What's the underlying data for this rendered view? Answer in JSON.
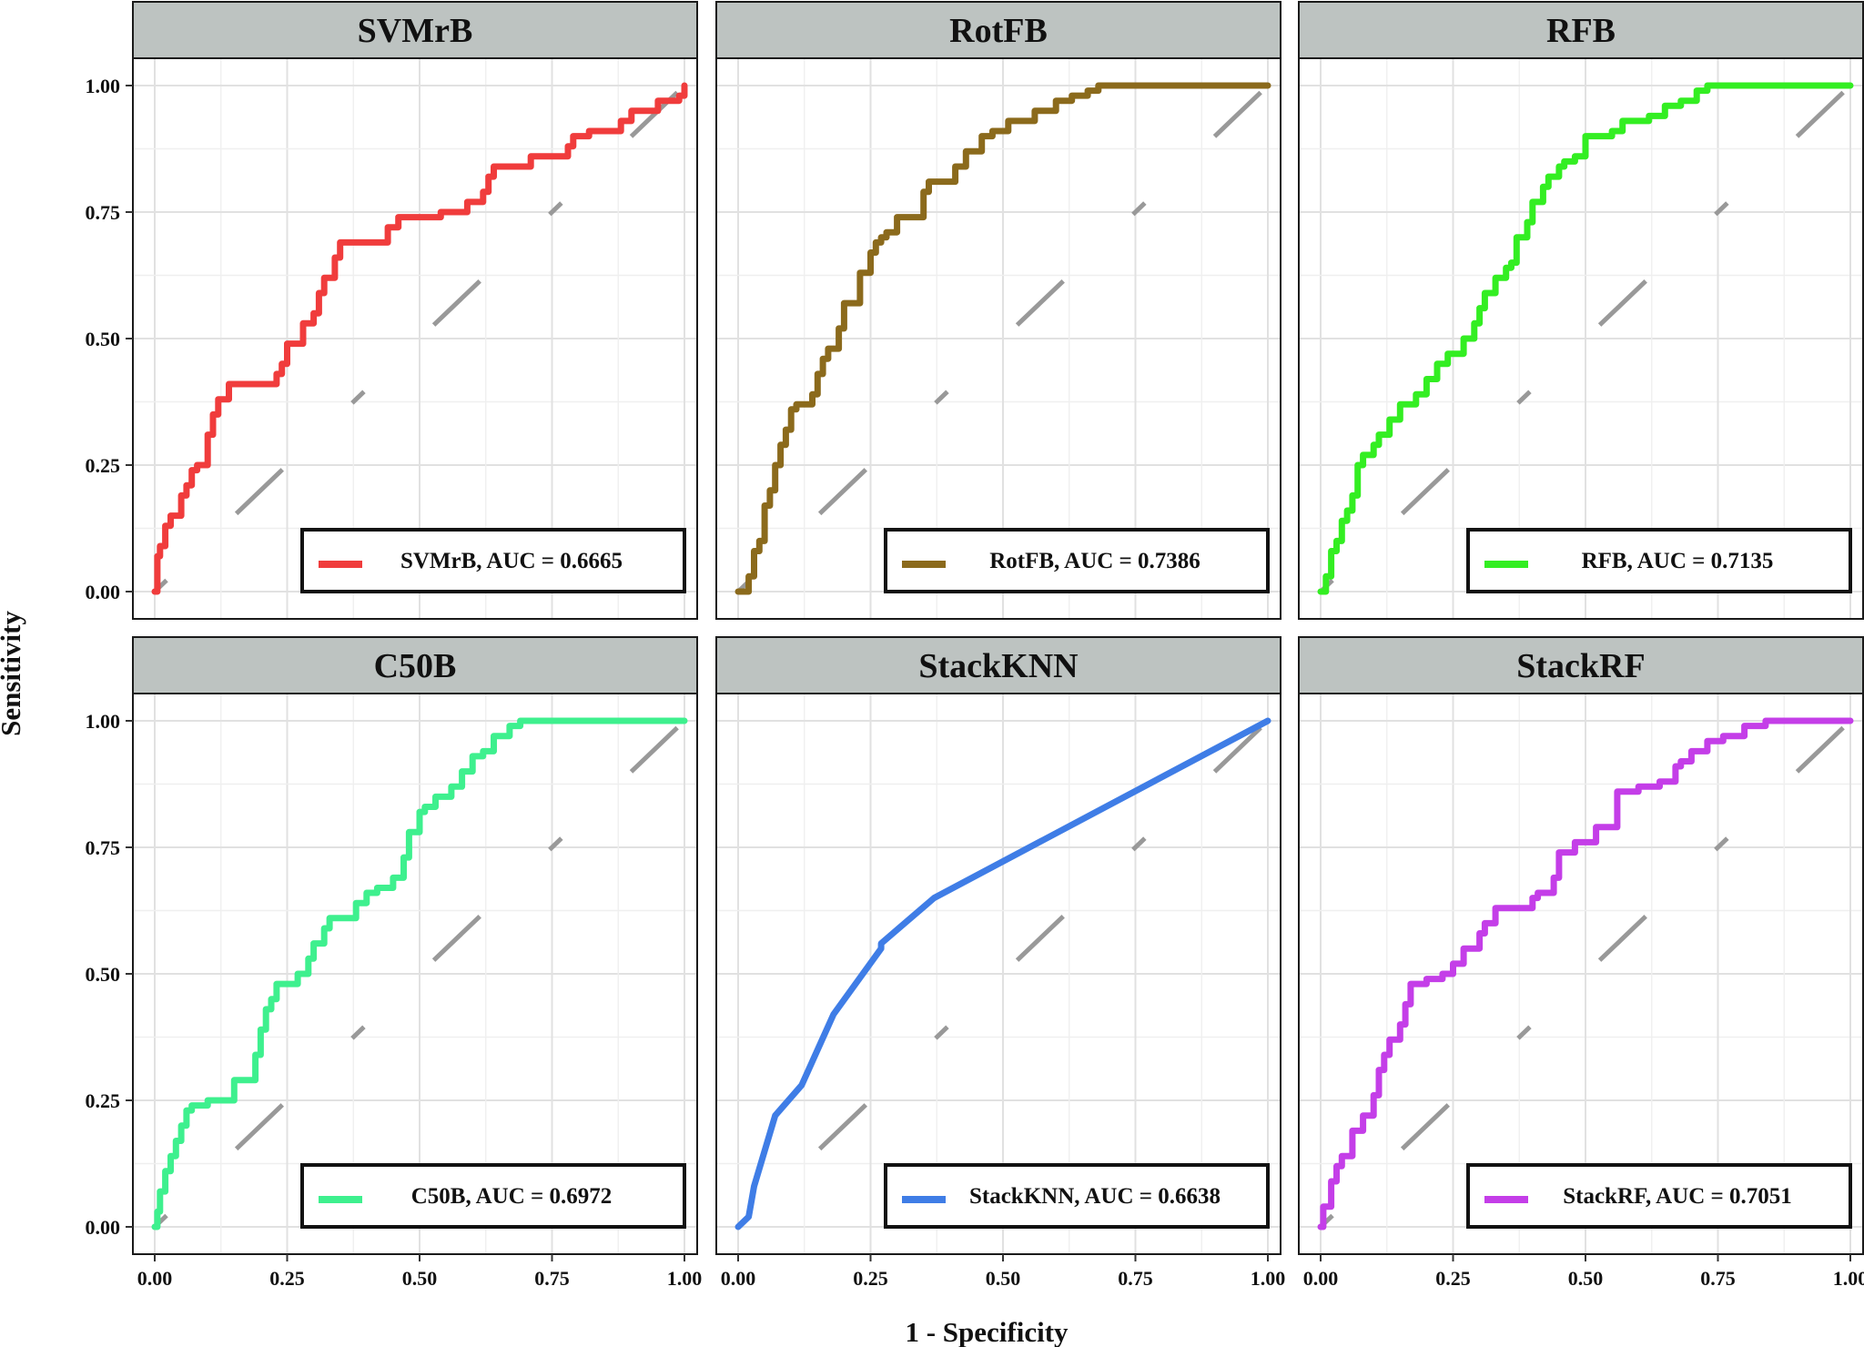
{
  "chart_data": {
    "type": "line",
    "xlabel": "1 - Specificity",
    "ylabel": "Sensitivity",
    "xlim": [
      0,
      1
    ],
    "ylim": [
      0,
      1
    ],
    "x_ticks": [
      "0.00",
      "0.25",
      "0.50",
      "0.75",
      "1.00"
    ],
    "y_ticks": [
      "0.00",
      "0.25",
      "0.50",
      "0.75",
      "1.00"
    ],
    "grid": true,
    "reference_line": "dashed diagonal y = x",
    "reference_color": "#999999",
    "panels": [
      {
        "title": "SVMrB",
        "legend": "SVMrB, AUC = 0.6665",
        "auc": 0.6665,
        "color": "#f03c3c",
        "x": [
          0,
          0.005,
          0.005,
          0.01,
          0.01,
          0.02,
          0.02,
          0.03,
          0.03,
          0.05,
          0.05,
          0.06,
          0.06,
          0.07,
          0.07,
          0.08,
          0.08,
          0.1,
          0.1,
          0.11,
          0.11,
          0.12,
          0.12,
          0.14,
          0.14,
          0.23,
          0.23,
          0.24,
          0.24,
          0.25,
          0.25,
          0.28,
          0.28,
          0.3,
          0.3,
          0.31,
          0.31,
          0.32,
          0.32,
          0.34,
          0.34,
          0.35,
          0.35,
          0.37,
          0.37,
          0.44,
          0.44,
          0.46,
          0.46,
          0.54,
          0.54,
          0.59,
          0.59,
          0.62,
          0.62,
          0.63,
          0.63,
          0.64,
          0.64,
          0.71,
          0.71,
          0.78,
          0.78,
          0.79,
          0.79,
          0.82,
          0.82,
          0.88,
          0.88,
          0.9,
          0.9,
          0.95,
          0.95,
          0.99,
          0.99,
          1.0,
          1.0
        ],
        "y": [
          0,
          0,
          0.07,
          0.07,
          0.09,
          0.09,
          0.13,
          0.13,
          0.15,
          0.15,
          0.19,
          0.19,
          0.21,
          0.21,
          0.24,
          0.24,
          0.25,
          0.25,
          0.31,
          0.31,
          0.35,
          0.35,
          0.38,
          0.38,
          0.41,
          0.41,
          0.43,
          0.43,
          0.45,
          0.45,
          0.49,
          0.49,
          0.53,
          0.53,
          0.55,
          0.55,
          0.59,
          0.59,
          0.62,
          0.62,
          0.66,
          0.66,
          0.69,
          0.69,
          0.69,
          0.69,
          0.72,
          0.72,
          0.74,
          0.74,
          0.75,
          0.75,
          0.77,
          0.77,
          0.79,
          0.79,
          0.82,
          0.82,
          0.84,
          0.84,
          0.86,
          0.86,
          0.88,
          0.88,
          0.9,
          0.9,
          0.91,
          0.91,
          0.93,
          0.93,
          0.95,
          0.95,
          0.97,
          0.97,
          0.98,
          0.98,
          1.0
        ]
      },
      {
        "title": "RotFB",
        "legend": "RotFB, AUC = 0.7386",
        "auc": 0.7386,
        "color": "#8b6a1c",
        "x": [
          0,
          0.02,
          0.02,
          0.03,
          0.03,
          0.04,
          0.04,
          0.05,
          0.05,
          0.06,
          0.06,
          0.07,
          0.07,
          0.08,
          0.08,
          0.09,
          0.09,
          0.1,
          0.1,
          0.11,
          0.11,
          0.14,
          0.14,
          0.15,
          0.15,
          0.16,
          0.16,
          0.17,
          0.17,
          0.19,
          0.19,
          0.2,
          0.2,
          0.23,
          0.23,
          0.25,
          0.25,
          0.26,
          0.26,
          0.27,
          0.27,
          0.28,
          0.28,
          0.3,
          0.3,
          0.35,
          0.35,
          0.36,
          0.36,
          0.41,
          0.41,
          0.43,
          0.43,
          0.46,
          0.46,
          0.48,
          0.48,
          0.51,
          0.51,
          0.56,
          0.56,
          0.6,
          0.6,
          0.63,
          0.63,
          0.66,
          0.66,
          0.68,
          0.68,
          0.7,
          0.7,
          1.0
        ],
        "y": [
          0,
          0,
          0.03,
          0.03,
          0.08,
          0.08,
          0.1,
          0.1,
          0.17,
          0.17,
          0.2,
          0.2,
          0.25,
          0.25,
          0.29,
          0.29,
          0.32,
          0.32,
          0.36,
          0.36,
          0.37,
          0.37,
          0.39,
          0.39,
          0.43,
          0.43,
          0.46,
          0.46,
          0.48,
          0.48,
          0.52,
          0.52,
          0.57,
          0.57,
          0.63,
          0.63,
          0.67,
          0.67,
          0.69,
          0.69,
          0.7,
          0.7,
          0.71,
          0.71,
          0.74,
          0.74,
          0.79,
          0.79,
          0.81,
          0.81,
          0.84,
          0.84,
          0.87,
          0.87,
          0.9,
          0.9,
          0.91,
          0.91,
          0.93,
          0.93,
          0.95,
          0.95,
          0.97,
          0.97,
          0.98,
          0.98,
          0.99,
          0.99,
          1.0,
          1.0,
          1.0,
          1.0
        ]
      },
      {
        "title": "RFB",
        "legend": "RFB, AUC = 0.7135",
        "auc": 0.7135,
        "color": "#33ee22",
        "x": [
          0,
          0.01,
          0.01,
          0.02,
          0.02,
          0.03,
          0.03,
          0.04,
          0.04,
          0.05,
          0.05,
          0.06,
          0.06,
          0.07,
          0.07,
          0.08,
          0.08,
          0.1,
          0.1,
          0.11,
          0.11,
          0.13,
          0.13,
          0.15,
          0.15,
          0.18,
          0.18,
          0.2,
          0.2,
          0.22,
          0.22,
          0.24,
          0.24,
          0.27,
          0.27,
          0.29,
          0.29,
          0.3,
          0.3,
          0.31,
          0.31,
          0.33,
          0.33,
          0.35,
          0.35,
          0.36,
          0.36,
          0.37,
          0.37,
          0.39,
          0.39,
          0.4,
          0.4,
          0.42,
          0.42,
          0.43,
          0.43,
          0.45,
          0.45,
          0.46,
          0.46,
          0.47,
          0.47,
          0.48,
          0.48,
          0.5,
          0.5,
          0.55,
          0.55,
          0.57,
          0.57,
          0.62,
          0.62,
          0.65,
          0.65,
          0.68,
          0.68,
          0.71,
          0.71,
          0.73,
          0.73,
          0.77,
          0.77,
          1.0
        ],
        "y": [
          0,
          0,
          0.03,
          0.03,
          0.08,
          0.08,
          0.1,
          0.1,
          0.14,
          0.14,
          0.16,
          0.16,
          0.19,
          0.19,
          0.25,
          0.25,
          0.27,
          0.27,
          0.29,
          0.29,
          0.31,
          0.31,
          0.34,
          0.34,
          0.37,
          0.37,
          0.39,
          0.39,
          0.42,
          0.42,
          0.45,
          0.45,
          0.47,
          0.47,
          0.5,
          0.5,
          0.53,
          0.53,
          0.56,
          0.56,
          0.59,
          0.59,
          0.62,
          0.62,
          0.64,
          0.64,
          0.65,
          0.65,
          0.7,
          0.7,
          0.73,
          0.73,
          0.77,
          0.77,
          0.8,
          0.8,
          0.82,
          0.82,
          0.84,
          0.84,
          0.85,
          0.85,
          0.85,
          0.85,
          0.86,
          0.86,
          0.9,
          0.9,
          0.91,
          0.91,
          0.93,
          0.93,
          0.94,
          0.94,
          0.96,
          0.96,
          0.97,
          0.97,
          0.99,
          0.99,
          1.0,
          1.0,
          1.0,
          1.0
        ]
      },
      {
        "title": "C50B",
        "legend": "C50B,  AUC = 0.6972",
        "auc": 0.6972,
        "color": "#3ef08e",
        "x": [
          0,
          0.005,
          0.005,
          0.01,
          0.01,
          0.02,
          0.02,
          0.03,
          0.03,
          0.04,
          0.04,
          0.05,
          0.05,
          0.06,
          0.06,
          0.07,
          0.07,
          0.1,
          0.1,
          0.15,
          0.15,
          0.19,
          0.19,
          0.2,
          0.2,
          0.21,
          0.21,
          0.22,
          0.22,
          0.23,
          0.23,
          0.27,
          0.27,
          0.29,
          0.29,
          0.3,
          0.3,
          0.32,
          0.32,
          0.33,
          0.33,
          0.38,
          0.38,
          0.4,
          0.4,
          0.42,
          0.42,
          0.45,
          0.45,
          0.47,
          0.47,
          0.48,
          0.48,
          0.5,
          0.5,
          0.51,
          0.51,
          0.53,
          0.53,
          0.56,
          0.56,
          0.58,
          0.58,
          0.6,
          0.6,
          0.62,
          0.62,
          0.64,
          0.64,
          0.67,
          0.67,
          0.69,
          0.69,
          0.71,
          0.71,
          1.0
        ],
        "y": [
          0,
          0,
          0.03,
          0.03,
          0.07,
          0.07,
          0.11,
          0.11,
          0.14,
          0.14,
          0.17,
          0.17,
          0.2,
          0.2,
          0.23,
          0.23,
          0.24,
          0.24,
          0.25,
          0.25,
          0.29,
          0.29,
          0.34,
          0.34,
          0.39,
          0.39,
          0.43,
          0.43,
          0.45,
          0.45,
          0.48,
          0.48,
          0.5,
          0.5,
          0.53,
          0.53,
          0.56,
          0.56,
          0.59,
          0.59,
          0.61,
          0.61,
          0.64,
          0.64,
          0.66,
          0.66,
          0.67,
          0.67,
          0.69,
          0.69,
          0.73,
          0.73,
          0.78,
          0.78,
          0.82,
          0.82,
          0.83,
          0.83,
          0.85,
          0.85,
          0.87,
          0.87,
          0.9,
          0.9,
          0.93,
          0.93,
          0.94,
          0.94,
          0.97,
          0.97,
          0.99,
          0.99,
          1.0,
          1.0,
          1.0,
          1.0
        ]
      },
      {
        "title": "StackKNN",
        "legend": "StackKNN, AUC  = 0.6638",
        "auc": 0.6638,
        "color": "#3f7de6",
        "x": [
          0,
          0.02,
          0.03,
          0.07,
          0.12,
          0.18,
          0.27,
          0.27,
          0.37,
          1.0
        ],
        "y": [
          0,
          0.02,
          0.08,
          0.22,
          0.28,
          0.42,
          0.55,
          0.56,
          0.65,
          1.0
        ]
      },
      {
        "title": "StackRF",
        "legend": "StackRF, AUC = 0.7051",
        "auc": 0.7051,
        "color": "#c43ee8",
        "x": [
          0,
          0.005,
          0.005,
          0.02,
          0.02,
          0.03,
          0.03,
          0.04,
          0.04,
          0.06,
          0.06,
          0.08,
          0.08,
          0.1,
          0.1,
          0.11,
          0.11,
          0.12,
          0.12,
          0.13,
          0.13,
          0.15,
          0.15,
          0.16,
          0.16,
          0.17,
          0.17,
          0.2,
          0.2,
          0.23,
          0.23,
          0.25,
          0.25,
          0.27,
          0.27,
          0.3,
          0.3,
          0.31,
          0.31,
          0.33,
          0.33,
          0.34,
          0.34,
          0.4,
          0.4,
          0.41,
          0.41,
          0.44,
          0.44,
          0.45,
          0.45,
          0.48,
          0.48,
          0.52,
          0.52,
          0.56,
          0.56,
          0.57,
          0.57,
          0.6,
          0.6,
          0.64,
          0.64,
          0.67,
          0.67,
          0.68,
          0.68,
          0.7,
          0.7,
          0.73,
          0.73,
          0.76,
          0.76,
          0.8,
          0.8,
          0.84,
          0.84,
          0.86,
          0.86,
          1.0
        ],
        "y": [
          0,
          0,
          0.04,
          0.04,
          0.09,
          0.09,
          0.12,
          0.12,
          0.14,
          0.14,
          0.19,
          0.19,
          0.22,
          0.22,
          0.26,
          0.26,
          0.31,
          0.31,
          0.34,
          0.34,
          0.37,
          0.37,
          0.4,
          0.4,
          0.44,
          0.44,
          0.48,
          0.48,
          0.49,
          0.49,
          0.5,
          0.5,
          0.52,
          0.52,
          0.55,
          0.55,
          0.58,
          0.58,
          0.6,
          0.6,
          0.63,
          0.63,
          0.63,
          0.63,
          0.65,
          0.65,
          0.66,
          0.66,
          0.69,
          0.69,
          0.74,
          0.74,
          0.76,
          0.76,
          0.79,
          0.79,
          0.86,
          0.86,
          0.86,
          0.86,
          0.87,
          0.87,
          0.88,
          0.88,
          0.91,
          0.91,
          0.92,
          0.92,
          0.94,
          0.94,
          0.96,
          0.96,
          0.97,
          0.97,
          0.99,
          0.99,
          1.0,
          1.0,
          1.0,
          1.0
        ]
      }
    ]
  }
}
